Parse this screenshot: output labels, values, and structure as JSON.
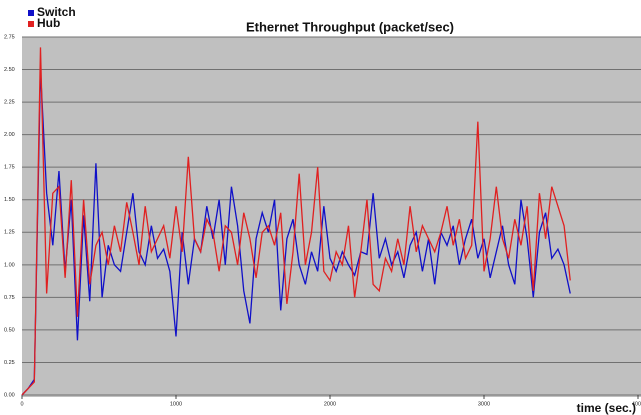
{
  "chart_data": {
    "type": "line",
    "title": "Ethernet Throughput (packet/sec)",
    "x_label": "time (sec.)",
    "x": [
      0,
      40,
      80,
      120,
      160,
      200,
      240,
      280,
      320,
      360,
      400,
      440,
      480,
      520,
      560,
      600,
      640,
      680,
      720,
      760,
      800,
      840,
      880,
      920,
      960,
      1000,
      1040,
      1080,
      1120,
      1160,
      1200,
      1240,
      1280,
      1320,
      1360,
      1400,
      1440,
      1480,
      1520,
      1560,
      1600,
      1640,
      1680,
      1720,
      1760,
      1800,
      1840,
      1880,
      1920,
      1960,
      2000,
      2040,
      2080,
      2120,
      2160,
      2200,
      2240,
      2280,
      2320,
      2360,
      2400,
      2440,
      2480,
      2520,
      2560,
      2600,
      2640,
      2680,
      2720,
      2760,
      2800,
      2840,
      2880,
      2920,
      2960,
      3000,
      3040,
      3080,
      3120,
      3160,
      3200,
      3240,
      3280,
      3320,
      3360,
      3400,
      3440,
      3480,
      3520,
      3560
    ],
    "series": [
      {
        "name": "Switch",
        "color": "#1010c8",
        "values": [
          0.0,
          0.05,
          0.12,
          2.5,
          1.55,
          1.15,
          1.72,
          0.95,
          1.5,
          0.42,
          1.38,
          0.72,
          1.78,
          0.75,
          1.15,
          1.0,
          0.95,
          1.25,
          1.55,
          1.1,
          1.0,
          1.3,
          1.05,
          1.12,
          0.95,
          0.45,
          1.25,
          0.85,
          1.2,
          1.1,
          1.45,
          1.2,
          1.5,
          1.0,
          1.6,
          1.3,
          0.8,
          0.55,
          1.2,
          1.4,
          1.25,
          1.5,
          0.65,
          1.2,
          1.35,
          1.0,
          0.85,
          1.1,
          0.95,
          1.45,
          1.05,
          0.95,
          1.1,
          1.0,
          0.92,
          1.1,
          1.08,
          1.55,
          1.05,
          1.2,
          1.0,
          1.1,
          0.9,
          1.15,
          1.25,
          0.95,
          1.2,
          0.85,
          1.25,
          1.15,
          1.3,
          1.0,
          1.2,
          1.35,
          1.05,
          1.2,
          0.9,
          1.1,
          1.3,
          1.0,
          0.85,
          1.5,
          1.2,
          0.75,
          1.25,
          1.4,
          1.05,
          1.12,
          1.0,
          0.78
        ]
      },
      {
        "name": "Hub",
        "color": "#e02020",
        "values": [
          0.0,
          0.05,
          0.1,
          2.67,
          0.78,
          1.55,
          1.6,
          0.9,
          1.65,
          0.6,
          1.5,
          0.85,
          1.15,
          1.25,
          1.0,
          1.3,
          1.1,
          1.48,
          1.25,
          1.0,
          1.45,
          1.1,
          1.2,
          1.3,
          1.05,
          1.45,
          1.1,
          1.83,
          1.2,
          1.1,
          1.35,
          1.25,
          0.95,
          1.3,
          1.25,
          1.0,
          1.4,
          1.2,
          0.9,
          1.25,
          1.3,
          1.15,
          1.4,
          0.7,
          1.1,
          1.7,
          1.0,
          1.25,
          1.75,
          0.95,
          0.88,
          1.1,
          1.0,
          1.3,
          0.75,
          1.1,
          1.5,
          0.85,
          0.8,
          1.05,
          0.95,
          1.2,
          1.0,
          1.45,
          1.1,
          1.3,
          1.2,
          1.1,
          1.25,
          1.45,
          1.15,
          1.35,
          1.05,
          1.15,
          2.1,
          0.95,
          1.2,
          1.6,
          1.2,
          1.05,
          1.35,
          1.15,
          1.45,
          0.8,
          1.55,
          1.2,
          1.6,
          1.45,
          1.3,
          0.88
        ]
      }
    ],
    "xlim": [
      0,
      4000
    ],
    "xticks": [
      0,
      1000,
      2000,
      3000,
      4000
    ],
    "ylim": [
      0,
      2.75
    ],
    "yticks": [
      {
        "value": 0,
        "label": "0.00"
      },
      {
        "value": 0.25,
        "label": "0.25"
      },
      {
        "value": 0.5,
        "label": "0.50"
      },
      {
        "value": 0.75,
        "label": "0.75"
      },
      {
        "value": 1,
        "label": "1.00"
      },
      {
        "value": 1.25,
        "label": "1.25"
      },
      {
        "value": 1.5,
        "label": "1.50"
      },
      {
        "value": 1.75,
        "label": "1.75"
      },
      {
        "value": 2,
        "label": "2.00"
      },
      {
        "value": 2.25,
        "label": "2.25"
      },
      {
        "value": 2.5,
        "label": "2.50"
      },
      {
        "value": 2.75,
        "label": "2.75"
      }
    ],
    "grid": true,
    "legend": "top-left",
    "background": "#c0c0c0"
  }
}
